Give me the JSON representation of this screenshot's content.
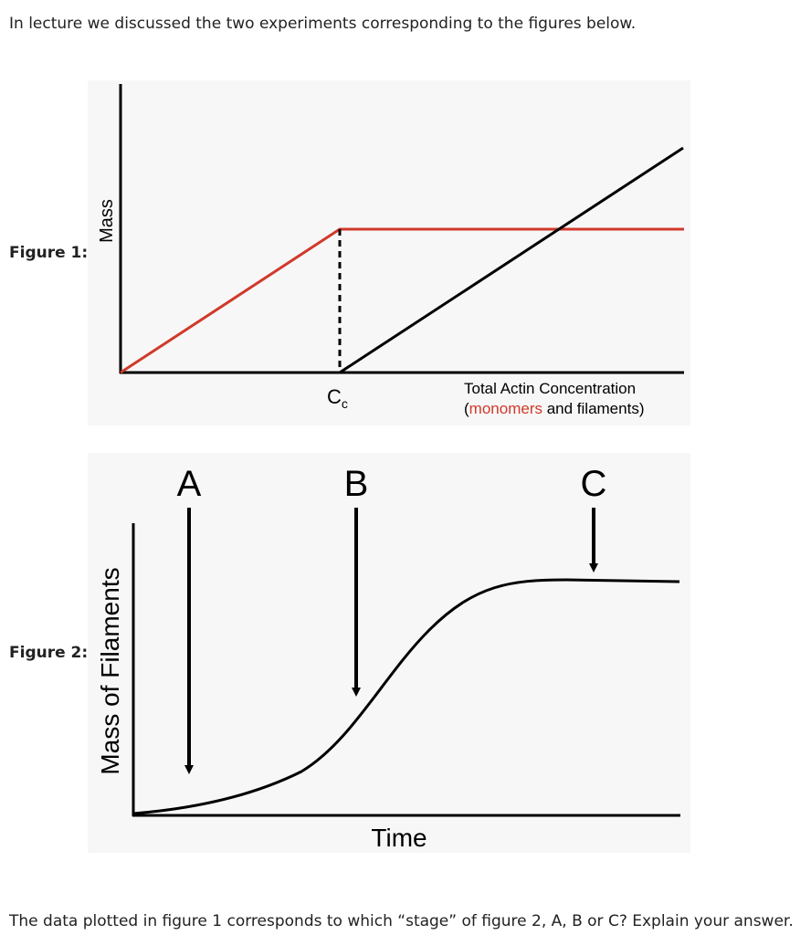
{
  "intro": "In lecture we discussed the two experiments corresponding to the figures below.",
  "figure1": {
    "label": "Figure 1:",
    "y_label": "Mass",
    "cc": {
      "base": "C",
      "sub": "c"
    },
    "x_label_line1": "Total Actin Concentration",
    "x_label_line2": [
      "(",
      "monomers",
      " and filaments)"
    ]
  },
  "figure2": {
    "label": "Figure 2:",
    "arrows": [
      "A",
      "B",
      "C"
    ],
    "y_label": "Mass of Filaments",
    "x_label": "Time"
  },
  "question": "The data plotted in figure 1 corresponds to which “stage” of figure 2, A, B or C? Explain your answer."
}
